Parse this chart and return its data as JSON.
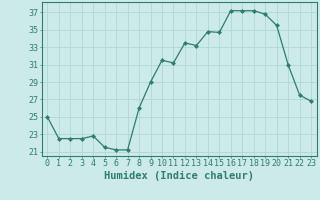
{
  "x": [
    0,
    1,
    2,
    3,
    4,
    5,
    6,
    7,
    8,
    9,
    10,
    11,
    12,
    13,
    14,
    15,
    16,
    17,
    18,
    19,
    20,
    21,
    22,
    23
  ],
  "y": [
    25,
    22.5,
    22.5,
    22.5,
    22.8,
    21.5,
    21.2,
    21.2,
    26,
    29,
    31.5,
    31.2,
    33.5,
    33.2,
    34.8,
    34.7,
    37.2,
    37.2,
    37.2,
    36.8,
    35.5,
    31.0,
    27.5,
    26.8
  ],
  "xlabel": "Humidex (Indice chaleur)",
  "xlim": [
    -0.5,
    23.5
  ],
  "ylim": [
    20.5,
    38.2
  ],
  "yticks": [
    21,
    23,
    25,
    27,
    29,
    31,
    33,
    35,
    37
  ],
  "xticks": [
    0,
    1,
    2,
    3,
    4,
    5,
    6,
    7,
    8,
    9,
    10,
    11,
    12,
    13,
    14,
    15,
    16,
    17,
    18,
    19,
    20,
    21,
    22,
    23
  ],
  "line_color": "#2e7d6e",
  "marker": "D",
  "marker_size": 2.0,
  "bg_color": "#cceae7",
  "grid_color": "#b0d8d4",
  "axes_color": "#2e7d6e",
  "tick_color": "#2e7d6e",
  "label_color": "#2e7d6e",
  "xlabel_fontsize": 7.5,
  "tick_fontsize": 6.0
}
